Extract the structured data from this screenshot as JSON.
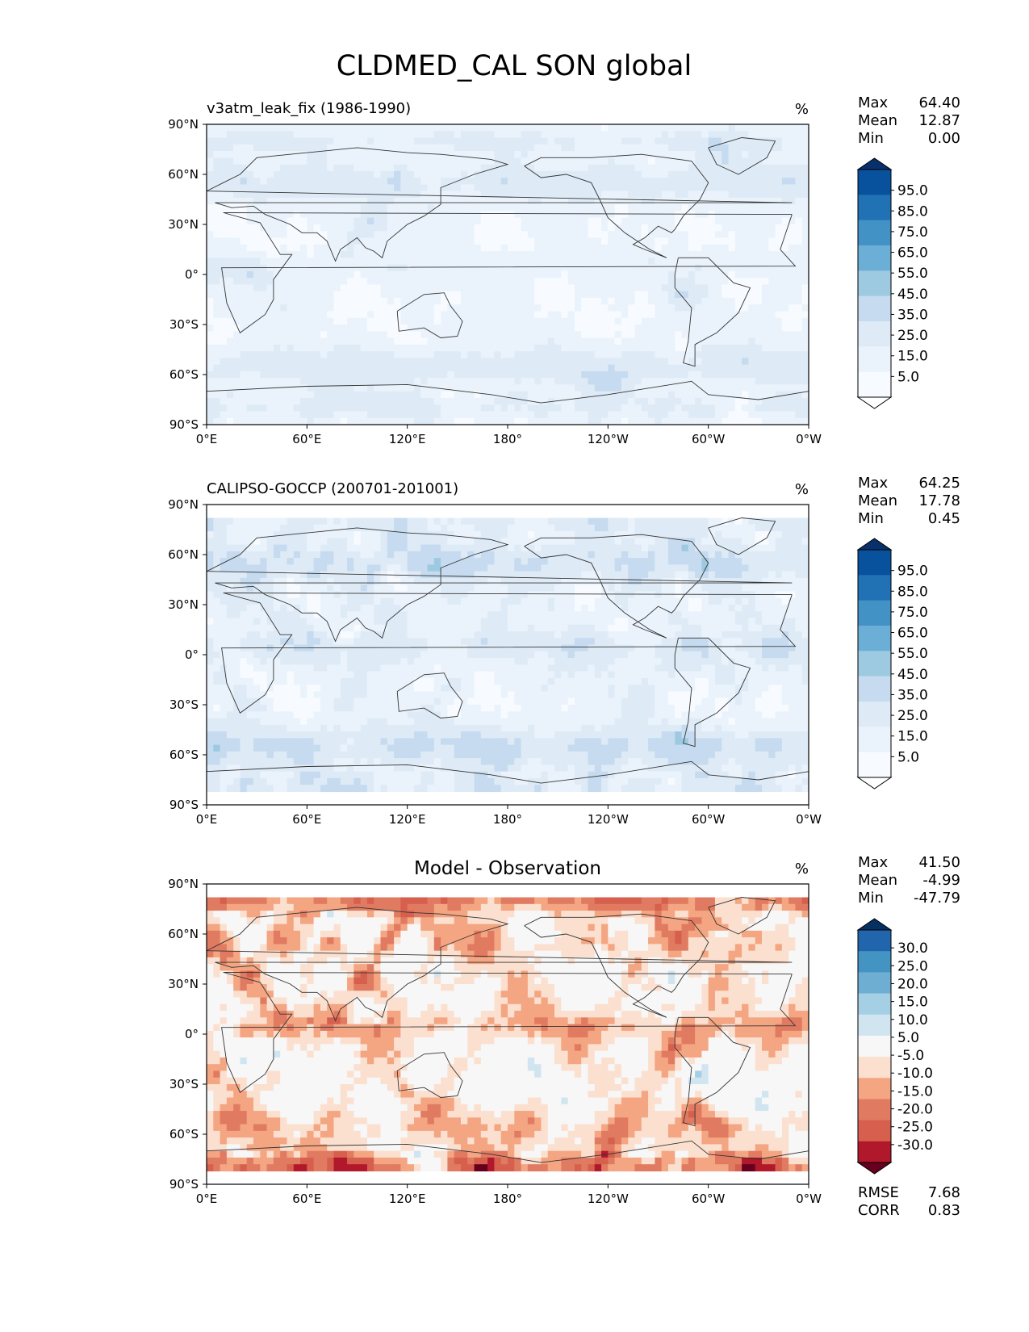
{
  "chart_data": {
    "type": "heatmap",
    "title": "CLDMED_CAL SON global",
    "x_ticks": [
      "0°E",
      "60°E",
      "120°E",
      "180°",
      "120°W",
      "60°W",
      "0°W"
    ],
    "y_ticks": [
      "90°N",
      "60°N",
      "30°N",
      "0°",
      "30°S",
      "60°S",
      "90°S"
    ],
    "panels": [
      {
        "id": "model",
        "left_title": "v3atm_leak_fix (1986-1990)",
        "center_title": "",
        "units": "%",
        "stats": [
          {
            "label": "Max",
            "value": "64.40"
          },
          {
            "label": "Mean",
            "value": "12.87"
          },
          {
            "label": "Min",
            "value": "0.00"
          }
        ],
        "colorbar": {
          "labels": [
            "95.0",
            "85.0",
            "75.0",
            "65.0",
            "55.0",
            "45.0",
            "35.0",
            "25.0",
            "15.0",
            "5.0"
          ],
          "colors": [
            "#08306b",
            "#08519c",
            "#2171b5",
            "#4292c6",
            "#6baed6",
            "#9ecae1",
            "#c6dbef",
            "#deebf7",
            "#eaf3fb",
            "#f7fbff",
            "#ffffff"
          ],
          "extend": "both"
        },
        "field": {
          "lat_range": [
            -90,
            90
          ],
          "base": 16,
          "itcz": 6,
          "midlat": 14,
          "polar": 10,
          "land_noise": 6,
          "hot_boost": 28
        },
        "metrics": []
      },
      {
        "id": "obs",
        "left_title": "CALIPSO-GOCCP (200701-201001)",
        "center_title": "",
        "units": "%",
        "stats": [
          {
            "label": "Max",
            "value": "64.25"
          },
          {
            "label": "Mean",
            "value": "17.78"
          },
          {
            "label": "Min",
            "value": "0.45"
          }
        ],
        "colorbar": {
          "labels": [
            "95.0",
            "85.0",
            "75.0",
            "65.0",
            "55.0",
            "45.0",
            "35.0",
            "25.0",
            "15.0",
            "5.0"
          ],
          "colors": [
            "#08306b",
            "#08519c",
            "#2171b5",
            "#4292c6",
            "#6baed6",
            "#9ecae1",
            "#c6dbef",
            "#deebf7",
            "#eaf3fb",
            "#f7fbff",
            "#ffffff"
          ],
          "extend": "both"
        },
        "field": {
          "lat_range": [
            -82,
            82
          ],
          "base": 20,
          "itcz": 10,
          "midlat": 16,
          "polar": 8,
          "land_noise": 10,
          "hot_boost": 22
        },
        "metrics": []
      },
      {
        "id": "diff",
        "left_title": "",
        "center_title": "Model - Observation",
        "units": "%",
        "stats": [
          {
            "label": "Max",
            "value": "41.50"
          },
          {
            "label": "Mean",
            "value": "-4.99"
          },
          {
            "label": "Min",
            "value": "-47.79"
          }
        ],
        "colorbar": {
          "labels": [
            "30.0",
            "25.0",
            "20.0",
            "15.0",
            "10.0",
            "5.0",
            "-5.0",
            "-10.0",
            "-15.0",
            "-20.0",
            "-25.0",
            "-30.0"
          ],
          "colors": [
            "#053061",
            "#2166ac",
            "#4393c3",
            "#6eaed3",
            "#a4cfe4",
            "#d1e5f0",
            "#f7f7f7",
            "#fbe0d0",
            "#f4a582",
            "#e07b62",
            "#d6604d",
            "#b2182b",
            "#67001f"
          ],
          "extend": "both"
        },
        "field": {
          "lat_range": [
            -82,
            82
          ],
          "base": -3,
          "itcz": -8,
          "midlat": -6,
          "polar": -14,
          "land_noise": 10,
          "hot_boost": -30
        },
        "metrics": [
          {
            "label": "RMSE",
            "value": "7.68"
          },
          {
            "label": "CORR",
            "value": "0.83"
          }
        ]
      }
    ]
  }
}
